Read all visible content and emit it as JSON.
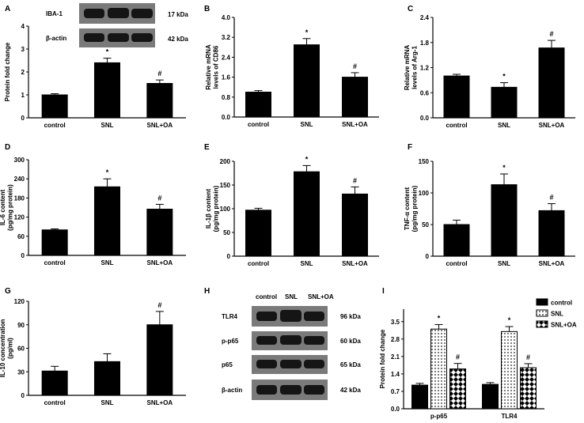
{
  "panel_letters": [
    "A",
    "B",
    "C",
    "D",
    "E",
    "F",
    "G",
    "H",
    "I"
  ],
  "blot_A": {
    "rows": [
      {
        "label": "IBA-1",
        "kda": "17 kDa"
      },
      {
        "label": "β-actin",
        "kda": "42 kDa"
      }
    ]
  },
  "blot_H": {
    "lanes": [
      "control",
      "SNL",
      "SNL+OA"
    ],
    "rows": [
      {
        "label": "TLR4",
        "kda": "96 kDa"
      },
      {
        "label": "p-p65",
        "kda": "60 kDa"
      },
      {
        "label": "p65",
        "kda": "65 kDa"
      },
      {
        "label": "β-actin",
        "kda": "42 kDa"
      }
    ]
  },
  "chart_data": [
    {
      "panel": "A",
      "type": "bar",
      "categories": [
        "control",
        "SNL",
        "SNL+OA"
      ],
      "values": [
        1.0,
        2.4,
        1.5
      ],
      "errors": [
        0.05,
        0.2,
        0.15
      ],
      "marks": [
        "",
        "*",
        "#"
      ],
      "ylabel": "Protein fold change",
      "ylim": [
        0,
        4
      ],
      "yticks": [
        0,
        1,
        2,
        3,
        4
      ]
    },
    {
      "panel": "B",
      "type": "bar",
      "categories": [
        "control",
        "SNL",
        "SNL+OA"
      ],
      "values": [
        1.0,
        2.9,
        1.6
      ],
      "errors": [
        0.06,
        0.25,
        0.18
      ],
      "marks": [
        "",
        "*",
        "#"
      ],
      "ylabel": "Relative mRNA levels of CD86",
      "ylim": [
        0,
        4
      ],
      "yticks": [
        "0.0",
        "0.8",
        "1.6",
        "2.4",
        "3.2",
        "4.0"
      ]
    },
    {
      "panel": "C",
      "type": "bar",
      "categories": [
        "control",
        "SNL",
        "SNL+OA"
      ],
      "values": [
        1.0,
        0.73,
        1.67
      ],
      "errors": [
        0.04,
        0.11,
        0.18
      ],
      "marks": [
        "",
        "*",
        "#"
      ],
      "ylabel": "Relative mRNA levels of Arg-1",
      "ylim": [
        0,
        2.4
      ],
      "yticks": [
        "0.0",
        "0.6",
        "1.2",
        "1.8",
        "2.4"
      ]
    },
    {
      "panel": "D",
      "type": "bar",
      "categories": [
        "control",
        "SNL",
        "SNL+OA"
      ],
      "values": [
        80,
        215,
        145
      ],
      "errors": [
        3,
        25,
        15
      ],
      "marks": [
        "",
        "*",
        "#"
      ],
      "ylabel": "IL-6 content (pg/mg protein)",
      "ylim": [
        0,
        300
      ],
      "yticks": [
        0,
        60,
        120,
        180,
        240,
        300
      ]
    },
    {
      "panel": "E",
      "type": "bar",
      "categories": [
        "control",
        "SNL",
        "SNL+OA"
      ],
      "values": [
        97,
        178,
        131
      ],
      "errors": [
        4,
        13,
        15
      ],
      "marks": [
        "",
        "*",
        "#"
      ],
      "ylabel": "IL-1β content (pg/mg protein)",
      "ylim": [
        0,
        200
      ],
      "yticks": [
        0,
        50,
        100,
        150,
        200
      ]
    },
    {
      "panel": "F",
      "type": "bar",
      "categories": [
        "control",
        "SNL",
        "SNL+OA"
      ],
      "values": [
        50,
        113,
        72
      ],
      "errors": [
        7,
        17,
        11
      ],
      "marks": [
        "",
        "*",
        "#"
      ],
      "ylabel": "TNF-α content (pg/mg protein)",
      "ylim": [
        0,
        150
      ],
      "yticks": [
        0,
        50,
        100,
        150
      ]
    },
    {
      "panel": "G",
      "type": "bar",
      "categories": [
        "control",
        "SNL",
        "SNL+OA"
      ],
      "values": [
        31,
        43,
        90
      ],
      "errors": [
        6,
        10,
        17
      ],
      "marks": [
        "",
        "",
        "#"
      ],
      "ylabel": "IL-10 concentration (pg/ml)",
      "ylim": [
        0,
        120
      ],
      "yticks": [
        0,
        30,
        60,
        90,
        120
      ]
    },
    {
      "panel": "I",
      "type": "bar",
      "categories": [
        "p-p65",
        "TLR4"
      ],
      "series": [
        {
          "name": "control",
          "values": [
            0.95,
            0.98
          ],
          "errors": [
            0.07,
            0.07
          ],
          "marks": [
            "",
            ""
          ]
        },
        {
          "name": "SNL",
          "values": [
            3.2,
            3.1
          ],
          "errors": [
            0.18,
            0.2
          ],
          "marks": [
            "*",
            "*"
          ]
        },
        {
          "name": "SNL+OA",
          "values": [
            1.6,
            1.65
          ],
          "errors": [
            0.22,
            0.16
          ],
          "marks": [
            "#",
            "#"
          ]
        }
      ],
      "ylabel": "Protein fold change",
      "ylim": [
        0,
        4
      ],
      "yticks": [
        "0.0",
        "0.7",
        "1.4",
        "2.1",
        "2.8",
        "3.5"
      ],
      "legend": "top-right"
    }
  ]
}
